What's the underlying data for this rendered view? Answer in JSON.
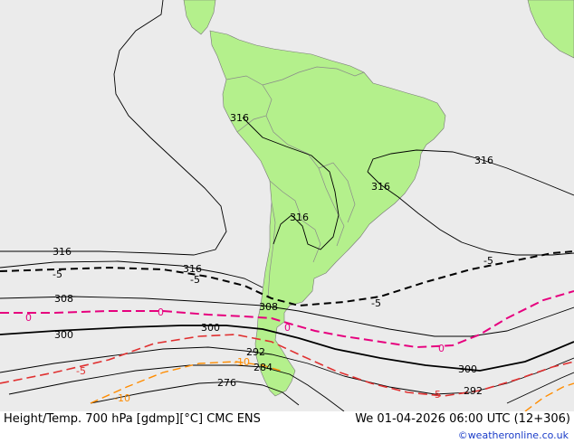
{
  "map": {
    "footer_left": "Height/Temp. 700 hPa [gdmp][°C] CMC ENS",
    "footer_right": "We 01-04-2026 06:00 UTC (12+306)",
    "credit": "©weatheronline.co.uk",
    "colors": {
      "ocean": "#ebebeb",
      "land": "#b4f08c",
      "height_contours": "#000000",
      "temp_zero": "#e6007e",
      "temp_minus5": "#e03030",
      "temp_minus10": "#ff8c00",
      "borders": "#8a8a8a",
      "credit": "#1a3cc8"
    },
    "labels": {
      "h316_a": "316",
      "h316_b": "316",
      "h316_c": "316",
      "h316_d": "316",
      "h316_e": "316",
      "h316_f": "316",
      "h308_a": "308",
      "h308_b": "308",
      "h300_a": "300",
      "h300_b": "300",
      "h300_c": "300",
      "h292_a": "292",
      "h292_b": "292",
      "h284": "284",
      "h276": "276",
      "t5_a": "-5",
      "t5_b": "-5",
      "t5_c": "-5",
      "t5_d": "-5",
      "t0_a": "0",
      "t0_b": "0",
      "t0_c": "0",
      "t0_d": "0",
      "tm5_a": "-5",
      "tm5_b": "-5",
      "tm10_a": "-10",
      "tm10_b": "-10"
    }
  }
}
